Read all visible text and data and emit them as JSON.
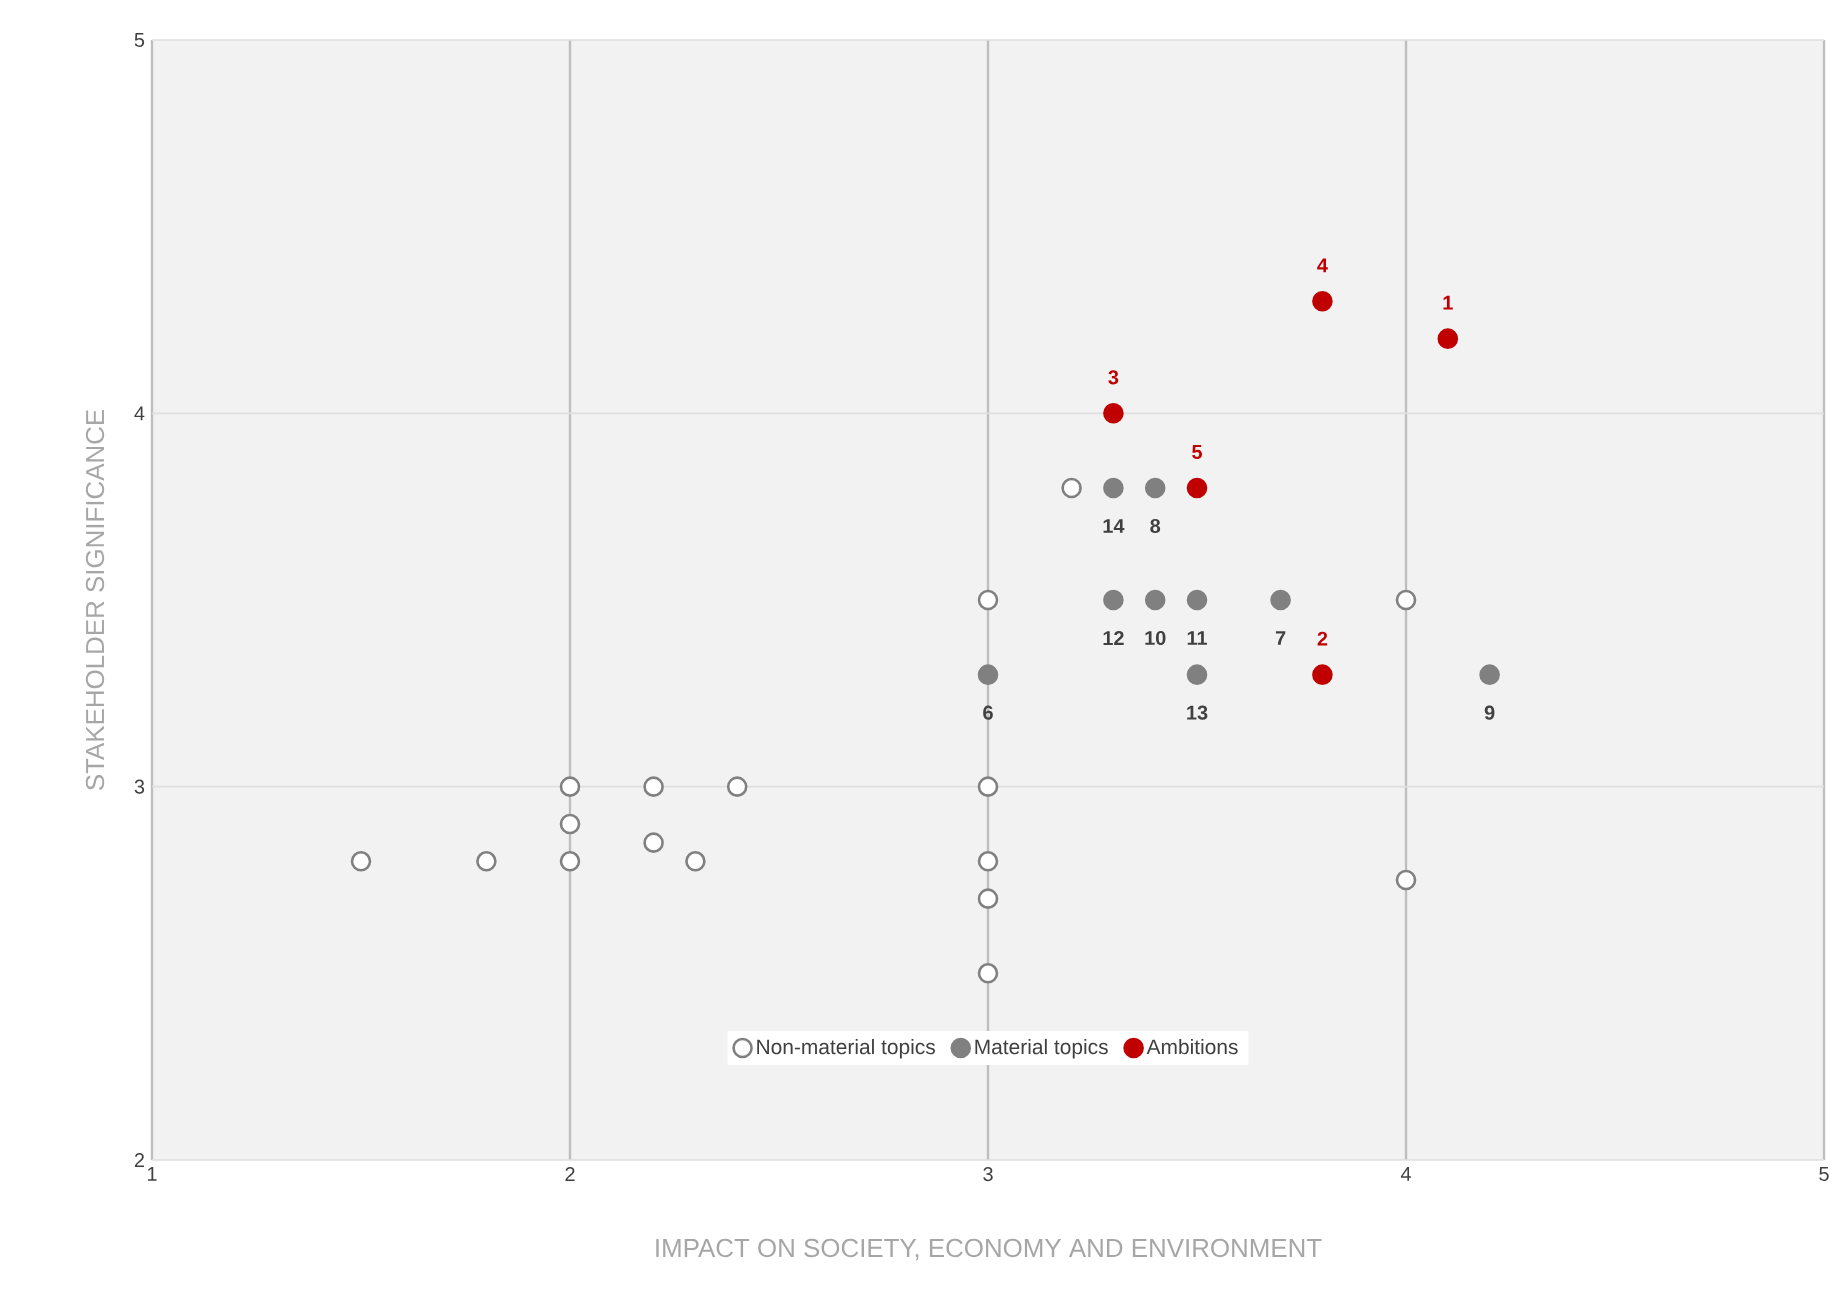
{
  "chart_data": {
    "type": "scatter",
    "xlabel": "IMPACT ON SOCIETY, ECONOMY AND ENVIRONMENT",
    "ylabel": "STAKEHOLDER SIGNIFICANCE",
    "xlim": [
      1,
      5
    ],
    "ylim": [
      2,
      5
    ],
    "xticks": [
      1,
      2,
      3,
      4,
      5
    ],
    "yticks": [
      2,
      3,
      4,
      5
    ],
    "grid": true,
    "legend": "bottom",
    "marker": "circle",
    "series": [
      {
        "name": "Non-material topics",
        "color": "#ffffff",
        "x": [
          1.5,
          1.8,
          2,
          2,
          2,
          2.2,
          2.2,
          2.3,
          2.4,
          3,
          3,
          3,
          3,
          3,
          3.2,
          4,
          4
        ],
        "values": [
          2.8,
          2.8,
          3,
          2.9,
          2.8,
          3,
          2.85,
          2.8,
          3,
          3.5,
          3,
          2.8,
          2.7,
          2.5,
          3.8,
          3.5,
          2.75
        ]
      },
      {
        "name": "Material topics",
        "color": "#808080",
        "x": [
          3,
          3.7,
          3.4,
          4.2,
          3.4,
          3.5,
          3.3,
          3.5,
          3.3
        ],
        "values": [
          3.3,
          3.5,
          3.8,
          3.3,
          3.5,
          3.5,
          3.5,
          3.3,
          3.8
        ]
      },
      {
        "name": "Ambitions",
        "color": "#c00000",
        "x": [
          4.1,
          3.8,
          3.3,
          3.8,
          3.5
        ],
        "values": [
          4.2,
          3.3,
          4.0,
          4.3,
          3.8
        ]
      }
    ],
    "annotations": [
      {
        "text": "1",
        "x": 4.1,
        "y": 4.2
      },
      {
        "text": "2",
        "x": 3.8,
        "y": 3.3
      },
      {
        "text": "3",
        "x": 3.3,
        "y": 4.0
      },
      {
        "text": "4",
        "x": 3.8,
        "y": 4.3
      },
      {
        "text": "5",
        "x": 3.5,
        "y": 3.8
      },
      {
        "text": "6",
        "x": 3,
        "y": 3.3
      },
      {
        "text": "7",
        "x": 3.7,
        "y": 3.5
      },
      {
        "text": "8",
        "x": 3.4,
        "y": 3.8
      },
      {
        "text": "9",
        "x": 4.2,
        "y": 3.3
      },
      {
        "text": "10",
        "x": 3.4,
        "y": 3.5
      },
      {
        "text": "11",
        "x": 3.5,
        "y": 3.5
      },
      {
        "text": "12",
        "x": 3.3,
        "y": 3.5
      },
      {
        "text": "13",
        "x": 3.5,
        "y": 3.3
      },
      {
        "text": "14",
        "x": 3.3,
        "y": 3.8
      }
    ]
  }
}
